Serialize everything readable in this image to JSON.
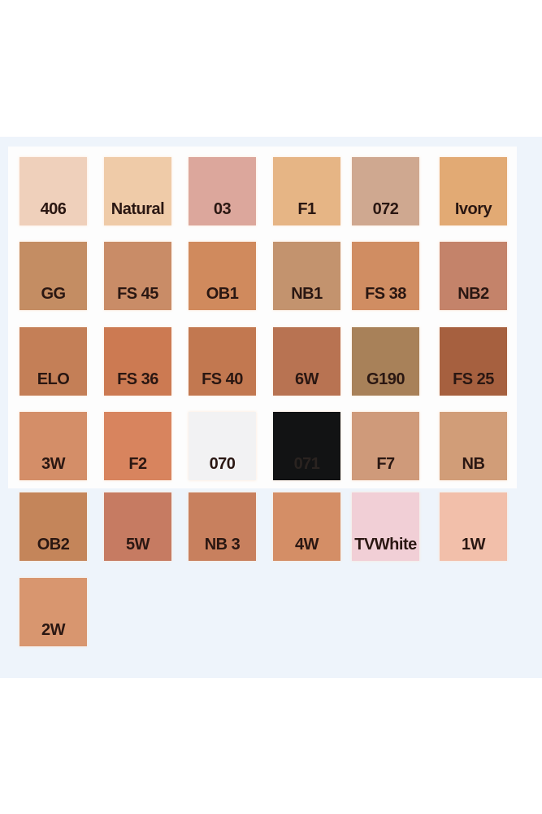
{
  "swatches": [
    {
      "label": "406",
      "color": "#efd0bb"
    },
    {
      "label": "Natural",
      "color": "#efcba8"
    },
    {
      "label": "03",
      "color": "#dca79c"
    },
    {
      "label": "F1",
      "color": "#e6b585"
    },
    {
      "label": "072",
      "color": "#cfa890"
    },
    {
      "label": "Ivory",
      "color": "#e2aa74"
    },
    {
      "label": "GG",
      "color": "#c48d63"
    },
    {
      "label": "FS 45",
      "color": "#c98c67"
    },
    {
      "label": "OB1",
      "color": "#d08a5d"
    },
    {
      "label": "NB1",
      "color": "#c3936e"
    },
    {
      "label": "FS 38",
      "color": "#d08d62"
    },
    {
      "label": "NB2",
      "color": "#c4836a"
    },
    {
      "label": "ELO",
      "color": "#c47f57"
    },
    {
      "label": "FS 36",
      "color": "#cc7a52"
    },
    {
      "label": "FS 40",
      "color": "#c27850"
    },
    {
      "label": "6W",
      "color": "#b87352"
    },
    {
      "label": "G190",
      "color": "#a88159"
    },
    {
      "label": "FS 25",
      "color": "#a6603f"
    },
    {
      "label": "3W",
      "color": "#d48e68"
    },
    {
      "label": "F2",
      "color": "#d8845e"
    },
    {
      "label": "070",
      "color": "#f2f2f3"
    },
    {
      "label": "071",
      "color": "#121314",
      "text": "#2a2320"
    },
    {
      "label": "F7",
      "color": "#cf9a7a"
    },
    {
      "label": "NB",
      "color": "#d19d78"
    },
    {
      "label": "OB2",
      "color": "#c4855a"
    },
    {
      "label": "5W",
      "color": "#c67b62"
    },
    {
      "label": "NB 3",
      "color": "#c8805e"
    },
    {
      "label": "4W",
      "color": "#d48e66"
    },
    {
      "label": "TVWhite",
      "color": "#f1cfd6"
    },
    {
      "label": "1W",
      "color": "#f2bfaa"
    },
    {
      "label": "2W",
      "color": "#d8966f"
    }
  ]
}
